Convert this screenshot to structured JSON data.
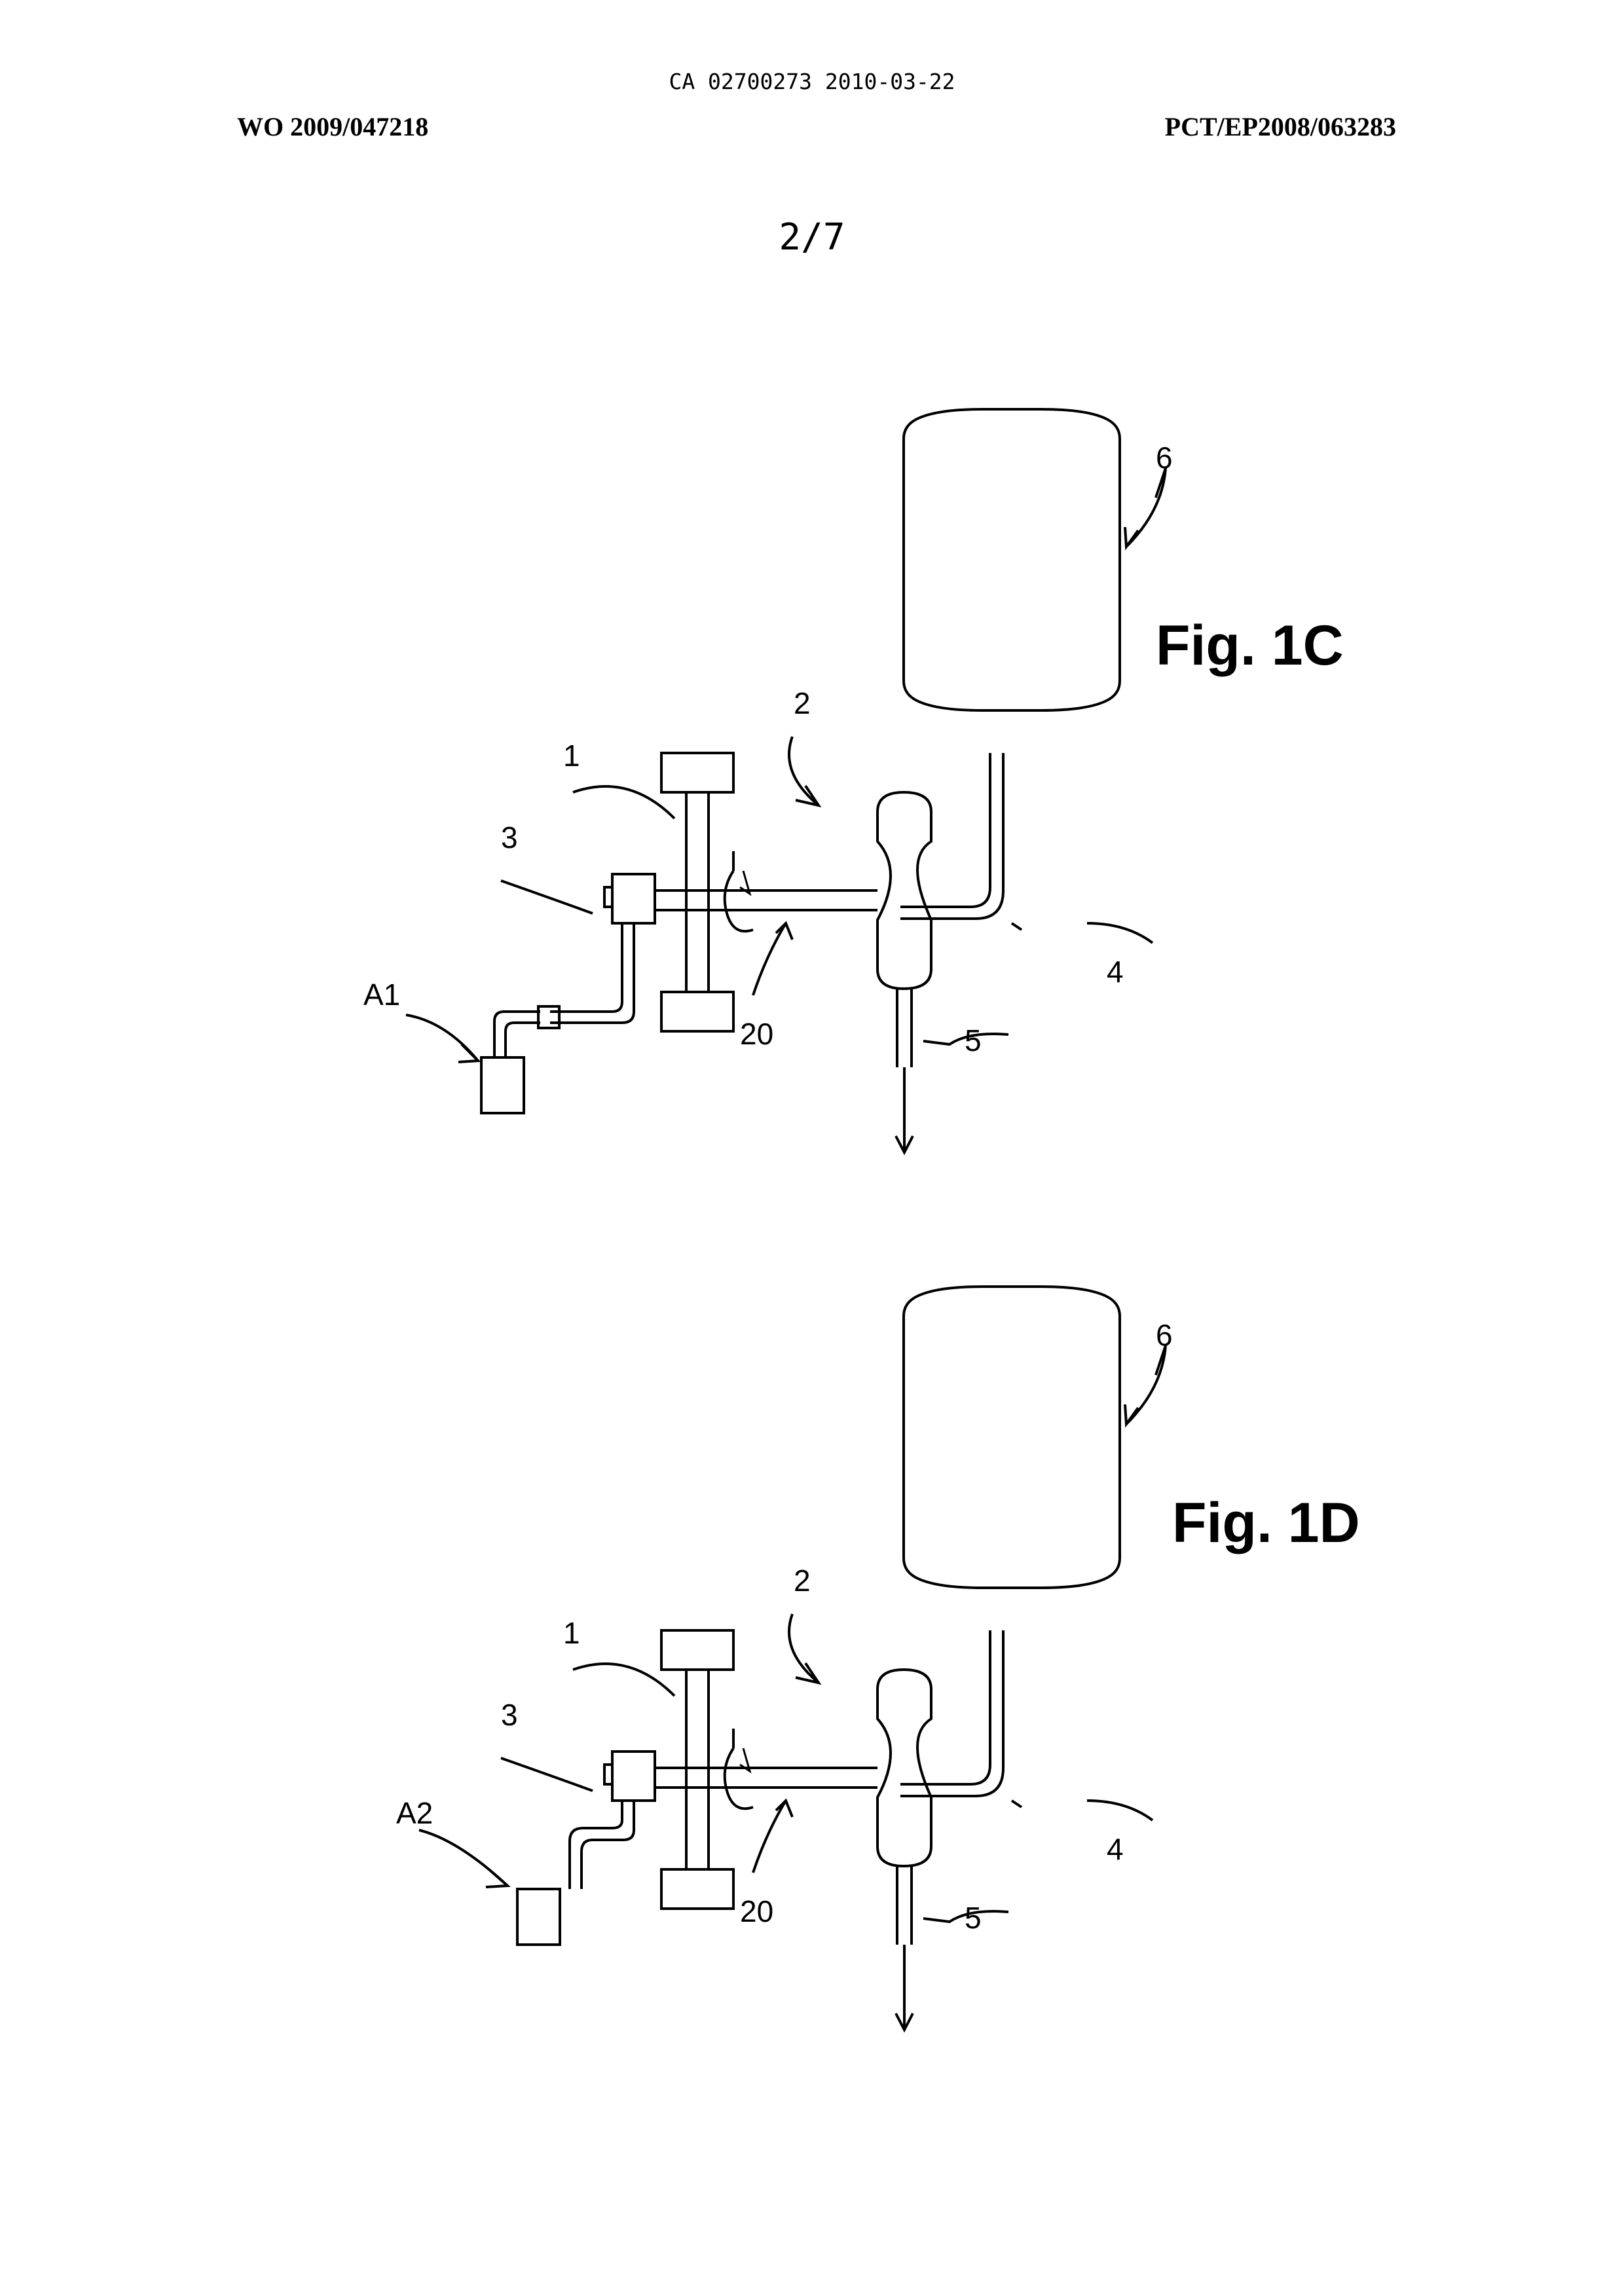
{
  "header": {
    "ca_line": "CA 02700273 2010-03-22",
    "wo_number": "WO 2009/047218",
    "pct_number": "PCT/EP2008/063283",
    "sheet": "2/7"
  },
  "figures": [
    {
      "title": "Fig. 1C",
      "labels": {
        "l1": "1",
        "l2": "2",
        "l3": "3",
        "l4": "4",
        "l5": "5",
        "l6": "6",
        "l20": "20",
        "la": "A1"
      }
    },
    {
      "title": "Fig. 1D",
      "labels": {
        "l1": "1",
        "l2": "2",
        "l3": "3",
        "l4": "4",
        "l5": "5",
        "l6": "6",
        "l20": "20",
        "la": "A2"
      }
    }
  ]
}
